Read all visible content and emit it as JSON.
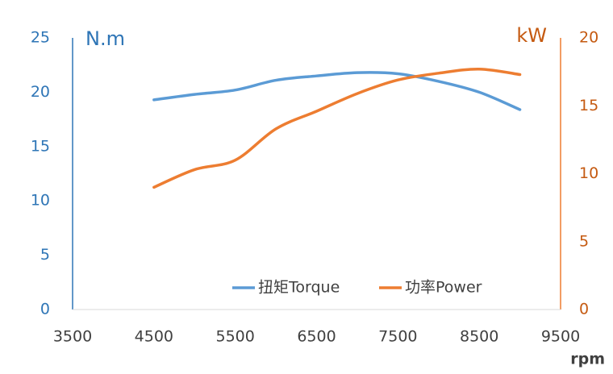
{
  "chart_data": {
    "type": "line",
    "xlabel": "rpm",
    "ylabel": "N.m",
    "y2label": "kW",
    "x": [
      4500,
      5000,
      5500,
      6000,
      6500,
      7000,
      7500,
      8000,
      8500,
      9000
    ],
    "series": [
      {
        "name": "扭矩Torque",
        "color": "#5b9bd5",
        "values": [
          19.3,
          19.8,
          20.2,
          21.1,
          21.5,
          21.8,
          21.7,
          21.0,
          20.0,
          18.4
        ]
      },
      {
        "name": "功率Power",
        "color": "#ed7d31",
        "axis": "y2",
        "values": [
          9.0,
          10.3,
          11.0,
          13.3,
          14.6,
          15.9,
          16.9,
          17.4,
          17.7,
          17.3
        ]
      }
    ],
    "xlim": [
      3500,
      9500
    ],
    "xticks": [
      3500,
      4500,
      5500,
      6500,
      7500,
      8500,
      9500
    ],
    "ylim": [
      0,
      25
    ],
    "yticks": [
      0,
      5,
      10,
      15,
      20,
      25
    ],
    "y2lim": [
      0,
      20
    ],
    "y2ticks": [
      0,
      5,
      10,
      15,
      20
    ],
    "legend": "bottom"
  }
}
